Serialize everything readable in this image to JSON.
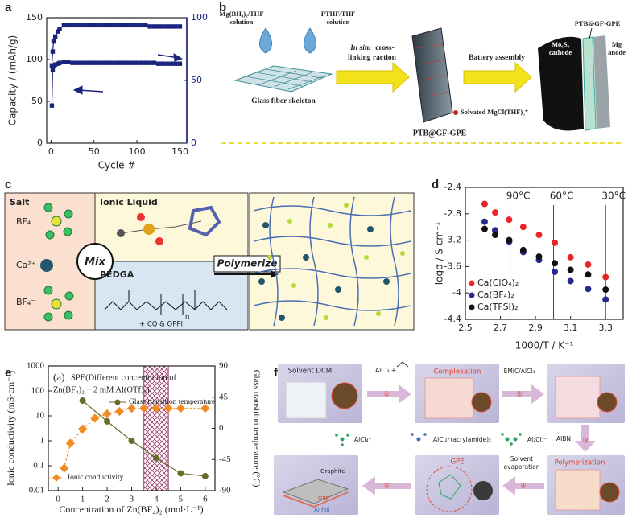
{
  "panel_labels": [
    "a",
    "b",
    "c",
    "d",
    "e",
    "f"
  ],
  "chart_data": [
    {
      "type": "line",
      "ylabel": "Capacity / (mAh/g)",
      "xlabel": "Cycle #",
      "x": [
        1,
        2,
        3,
        5,
        8,
        10,
        15,
        20,
        25,
        30,
        35,
        40,
        45,
        50,
        55,
        60,
        65,
        70,
        75,
        80,
        85,
        90,
        95,
        100,
        105,
        110,
        115,
        120,
        125,
        130,
        135,
        140,
        145,
        150
      ],
      "xlim": [
        -5,
        158
      ],
      "xticks": [
        0,
        50,
        100,
        150
      ],
      "ylim": [
        0,
        150
      ],
      "yticks": [
        0,
        50,
        100,
        150
      ],
      "y2lim": [
        0,
        100
      ],
      "y2ticks": [
        0,
        50,
        100
      ],
      "y2_color": "#1a237e",
      "series": [
        {
          "color": "#1a237e",
          "marker": "square",
          "line_style": "solid",
          "values": [
            45,
            88,
            92,
            94,
            95,
            96,
            97,
            97,
            96,
            96,
            96,
            96,
            96,
            96,
            96,
            96,
            96,
            96,
            96,
            96,
            96,
            96,
            96,
            96,
            96,
            96,
            96,
            96,
            95,
            95,
            95,
            95,
            95,
            95
          ]
        },
        {
          "color": "#1a237e",
          "marker": "square",
          "line_style": "solid",
          "axis": "y2",
          "values": [
            62,
            73,
            81,
            85,
            89,
            91,
            94,
            94,
            94,
            94,
            94,
            94,
            94,
            94,
            94,
            94,
            94,
            94,
            94,
            94,
            94,
            94,
            94,
            94,
            94,
            94,
            93,
            93,
            93,
            93,
            93,
            93,
            93,
            93
          ]
        }
      ]
    },
    {
      "type": "scatter",
      "ylabel": "logσ / S cm⁻¹",
      "xlabel": "1000/T / K⁻¹",
      "x": [
        2.61,
        2.67,
        2.75,
        2.83,
        2.92,
        3.01,
        3.1,
        3.2,
        3.3
      ],
      "xlim": [
        2.5,
        3.4
      ],
      "xticks": [
        2.5,
        2.7,
        2.9,
        3.1,
        3.3
      ],
      "ylim": [
        -4.4,
        -2.4
      ],
      "yticks": [
        -4.4,
        -4.0,
        -3.6,
        -3.2,
        -2.8,
        -2.4
      ],
      "vlines": [
        {
          "value": 2.755,
          "label": "90°C"
        },
        {
          "value": 3.003,
          "label": "60°C"
        },
        {
          "value": 3.3,
          "label": "30°C"
        }
      ],
      "legend": "lower left",
      "series": [
        {
          "name": "Ca(ClO₄)₂",
          "color": "#e8262a",
          "marker": "circle",
          "values": [
            -2.65,
            -2.78,
            -2.89,
            -3.0,
            -3.12,
            -3.24,
            -3.46,
            -3.57,
            -3.76
          ]
        },
        {
          "name": "Ca(BF₄)₂",
          "color": "#262a8c",
          "marker": "circle",
          "values": [
            -2.92,
            -3.05,
            -3.22,
            -3.38,
            -3.5,
            -3.68,
            -3.82,
            -3.94,
            -4.1
          ]
        },
        {
          "name": "Ca(TFSI)₂",
          "color": "#111111",
          "marker": "circle",
          "values": [
            -3.03,
            -3.12,
            -3.2,
            -3.35,
            -3.45,
            -3.55,
            -3.65,
            -3.72,
            -3.95
          ]
        }
      ]
    },
    {
      "type": "line",
      "ylog": true,
      "ylabel": "Ionic conductivity (mS·cm⁻¹)",
      "y2label": "Glass transition temperature (°C)",
      "xlabel": "Concentration of Zn(BF₄)₂ (mol·L⁻¹)",
      "annotations": [
        "(a)",
        "SPE(Different concentration of",
        "Zn(BF₄)₂ + 2 mM Al(OTf)₃)"
      ],
      "xlim": [
        -0.4,
        6.4
      ],
      "xticks": [
        0,
        1,
        2,
        3,
        4,
        5,
        6
      ],
      "ylim": [
        0.01,
        1000
      ],
      "yticks": [
        0.01,
        0.1,
        1,
        10,
        100,
        1000
      ],
      "y2lim": [
        -90,
        90
      ],
      "y2ticks": [
        -90,
        -45,
        0,
        45,
        90
      ],
      "highlight_range": [
        3.5,
        4.5
      ],
      "series": [
        {
          "name": "Ionic conductivity",
          "color": "#f08a24",
          "marker": "diamond",
          "line_style": "dotted",
          "x": [
            0.25,
            0.5,
            1,
            1.5,
            2,
            2.5,
            3,
            3.5,
            4,
            4.5,
            5,
            6
          ],
          "values": [
            0.08,
            0.8,
            3,
            8,
            12,
            15,
            20,
            20,
            20,
            20,
            20,
            20
          ]
        },
        {
          "name": "Glass transition temperature",
          "color": "#6b6b2a",
          "marker": "circle",
          "line_style": "solid",
          "axis": "y2",
          "x": [
            1,
            2,
            3,
            4,
            5,
            6
          ],
          "values": [
            40,
            10,
            -18,
            -43,
            -65,
            -69
          ]
        }
      ]
    }
  ],
  "diagram_b": {
    "reagent_1": [
      "Mg(BH₄)₂/THF",
      "solution"
    ],
    "reagent_2": [
      "PTHF/THF",
      "solution"
    ],
    "skeleton": "Glass fiber skeleton",
    "step_1": [
      "In situ",
      " cross-",
      "linking raction"
    ],
    "step_2": "Battery assembly",
    "gel": "PTB@GF-GPE",
    "species": "Solvated MgCl(THF)₅⁺",
    "cell_gel": "PTB@GF-GPE",
    "cathode": [
      "Mo₆S₈",
      "cathode"
    ],
    "anode": [
      "Mg",
      "anode"
    ]
  },
  "diagram_c": {
    "salt": "Salt",
    "anion_1": "BF₄⁻",
    "cation": "Ca²⁺",
    "anion_2": "BF₄⁻",
    "ionic_liquid": "Ionic Liquid",
    "mix": "Mix",
    "polymerize": "Polymerize",
    "monomer": "PEDGA",
    "repeat": "n",
    "additives": "+ CQ & OPPI"
  },
  "diagram_f": {
    "solvent": "Solvent  DCM",
    "reagent": "AlCl₃ +",
    "complexation": "Complexation",
    "reagent_2": "EMIC/AlCl₃",
    "initiator": "AIBN",
    "polymerization": "Polymerization",
    "evaporation": [
      "Solvent",
      "evaporation"
    ],
    "gpe": "GPE",
    "cell": [
      "Graphite",
      "GPE",
      "Al foil"
    ],
    "species": [
      "AlCl₄⁻",
      "AlCl₂⁺(acrylamide)₂",
      "Al₂Cl₇⁻"
    ],
    "steps": [
      "①",
      "②",
      "③",
      "④",
      "⑤"
    ]
  }
}
